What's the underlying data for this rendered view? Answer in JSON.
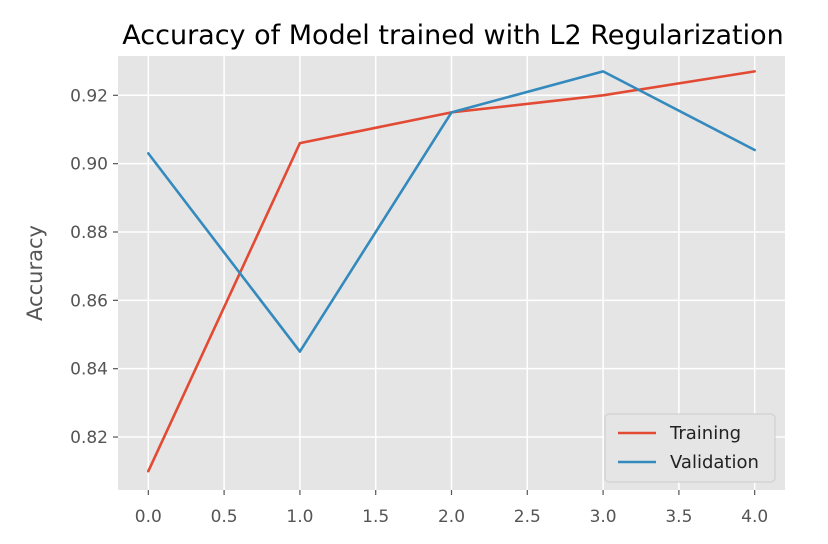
{
  "chart_data": {
    "type": "line",
    "title": "Accuracy of Model trained with L2 Regularization",
    "xlabel": "",
    "ylabel": "Accuracy",
    "xlim": [
      -0.2,
      4.2
    ],
    "ylim": [
      0.8045,
      0.9315
    ],
    "xticks": [
      0.0,
      0.5,
      1.0,
      1.5,
      2.0,
      2.5,
      3.0,
      3.5,
      4.0
    ],
    "xtick_labels": [
      "0.0",
      "0.5",
      "1.0",
      "1.5",
      "2.0",
      "2.5",
      "3.0",
      "3.5",
      "4.0"
    ],
    "yticks": [
      0.82,
      0.84,
      0.86,
      0.88,
      0.9,
      0.92
    ],
    "ytick_labels": [
      "0.82",
      "0.84",
      "0.86",
      "0.88",
      "0.90",
      "0.92"
    ],
    "grid": true,
    "legend_position": "lower-right",
    "x": [
      0,
      1,
      2,
      3,
      4
    ],
    "series": [
      {
        "name": "Training",
        "color": "#E24A33",
        "values": [
          0.81,
          0.906,
          0.915,
          0.92,
          0.927
        ]
      },
      {
        "name": "Validation",
        "color": "#348ABD",
        "values": [
          0.903,
          0.845,
          0.915,
          0.927,
          0.904
        ]
      }
    ]
  },
  "colors": {
    "plot_background": "#E5E5E5",
    "grid": "#FFFFFF",
    "page_background": "#FFFFFF"
  }
}
